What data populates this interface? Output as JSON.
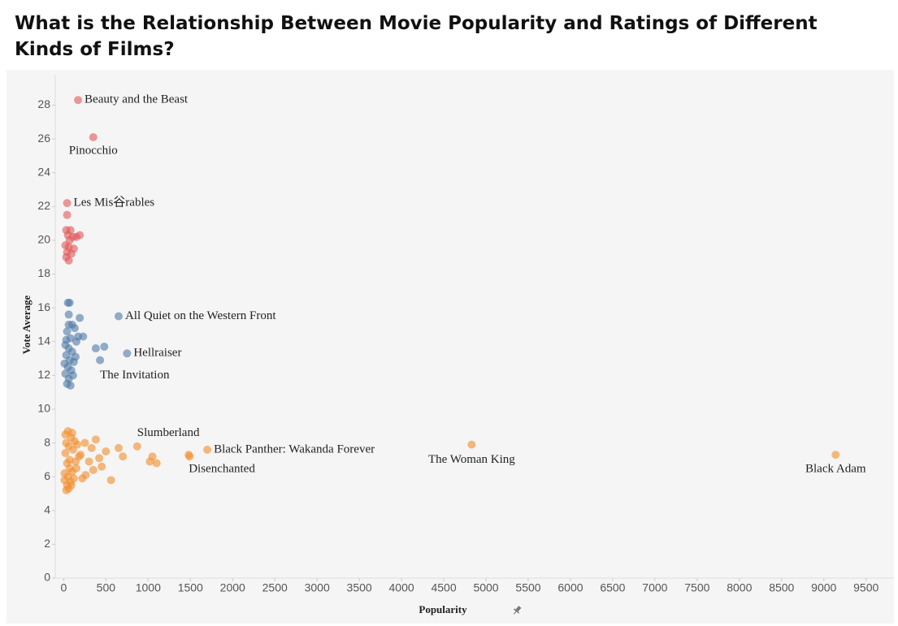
{
  "chart_data": {
    "type": "scatter",
    "title": "What is the Relationship Between Movie Popularity and Ratings of Different Kinds of Films?",
    "xlabel": "Popularity",
    "ylabel": "Vote Average",
    "xlim": [
      -100,
      9830
    ],
    "ylim": [
      0,
      29.8
    ],
    "xticks": [
      0,
      500,
      1000,
      1500,
      2000,
      2500,
      3000,
      3500,
      4000,
      4500,
      5000,
      5500,
      6000,
      6500,
      7000,
      7500,
      8000,
      8500,
      9000,
      9500
    ],
    "yticks": [
      0,
      2,
      4,
      6,
      8,
      10,
      12,
      14,
      16,
      18,
      20,
      22,
      24,
      26,
      28
    ],
    "series": [
      {
        "color": "#e15759",
        "x": [
          170,
          350,
          40,
          40,
          30,
          80,
          190,
          50,
          110,
          20,
          60,
          120,
          40,
          90,
          30,
          60,
          70,
          150
        ],
        "values": [
          28.3,
          26.1,
          22.2,
          21.5,
          20.6,
          20.6,
          20.3,
          20.3,
          20.2,
          19.7,
          19.6,
          19.5,
          19.3,
          19.2,
          19.0,
          18.8,
          20.0,
          20.2
        ],
        "point_labels": [
          "Beauty and the Beast",
          "Pinocchio",
          "Les Mis谷rables",
          null,
          null,
          null,
          null,
          null,
          null,
          null,
          null,
          null,
          null,
          null,
          null,
          null,
          null,
          null
        ]
      },
      {
        "color": "#4e79a7",
        "x": [
          650,
          750,
          430,
          50,
          70,
          60,
          190,
          100,
          130,
          230,
          40,
          80,
          150,
          20,
          60,
          380,
          480,
          100,
          30,
          70,
          120,
          50,
          90,
          20,
          60,
          40,
          80,
          110,
          30,
          140,
          10,
          170,
          60
        ],
        "values": [
          15.5,
          13.3,
          12.9,
          16.3,
          16.3,
          15.6,
          15.4,
          15.0,
          14.8,
          14.3,
          14.6,
          14.2,
          14.0,
          13.8,
          13.6,
          13.6,
          13.7,
          13.4,
          13.2,
          12.9,
          12.8,
          12.5,
          12.3,
          12.1,
          11.8,
          11.5,
          11.4,
          12.0,
          14.1,
          13.1,
          12.7,
          14.3,
          15.0
        ],
        "point_labels": [
          "All Quiet on the Western Front",
          "Hellraiser",
          "The Invitation",
          null,
          null,
          null,
          null,
          null,
          null,
          null,
          null,
          null,
          null,
          null,
          null,
          null,
          null,
          null,
          null,
          null,
          null,
          null,
          null,
          null,
          null,
          null,
          null,
          null,
          null,
          null,
          null,
          null,
          null
        ]
      },
      {
        "color": "#f28e2b",
        "x": [
          870,
          1700,
          1480,
          4830,
          9140,
          1050,
          1100,
          1020,
          650,
          700,
          560,
          450,
          500,
          380,
          330,
          300,
          420,
          250,
          200,
          150,
          100,
          50,
          20,
          30,
          60,
          90,
          120,
          10,
          40,
          70,
          110,
          130,
          160,
          20,
          50,
          80,
          100,
          140,
          180,
          30,
          60,
          90,
          10,
          40,
          70,
          1490,
          350,
          260,
          220
        ],
        "values": [
          7.8,
          7.6,
          7.3,
          7.9,
          7.3,
          7.2,
          6.8,
          6.9,
          7.7,
          7.2,
          5.8,
          6.6,
          7.5,
          8.2,
          7.7,
          6.9,
          7.1,
          8.0,
          7.3,
          6.5,
          8.6,
          8.7,
          8.5,
          5.2,
          5.3,
          5.5,
          5.9,
          6.2,
          6.8,
          7.0,
          7.6,
          8.1,
          7.9,
          7.4,
          6.0,
          5.7,
          6.3,
          6.9,
          7.2,
          8.0,
          7.8,
          8.3,
          5.8,
          5.5,
          6.5,
          7.2,
          6.4,
          6.1,
          5.9
        ],
        "point_labels": [
          "Slumberland",
          "Black Panther: Wakanda Forever",
          "Disenchanted",
          "The Woman King",
          "Black Adam",
          null,
          null,
          null,
          null,
          null,
          null,
          null,
          null,
          null,
          null,
          null,
          null,
          null,
          null,
          null,
          null,
          null,
          null,
          null,
          null,
          null,
          null,
          null,
          null,
          null,
          null,
          null,
          null,
          null,
          null,
          null,
          null,
          null,
          null,
          null,
          null,
          null,
          null,
          null,
          null,
          null,
          null,
          null,
          null
        ]
      }
    ]
  }
}
